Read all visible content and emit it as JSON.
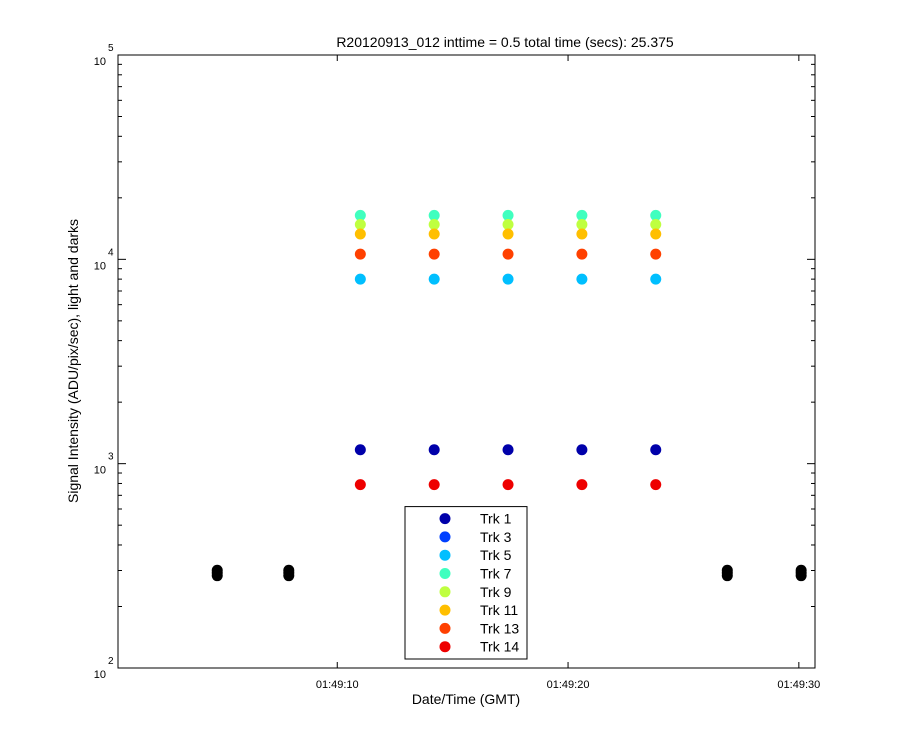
{
  "chart_data": {
    "type": "scatter",
    "title": "R20120913_012 inttime = 0.5 total time (secs): 25.375",
    "xlabel": "Date/Time (GMT)",
    "ylabel": "Signal Intensity (ADU/pix/sec), light and darks",
    "log_y": true,
    "legend_position": "bottom-center",
    "xlim": [
      "01:49:00.5",
      "01:49:30.7"
    ],
    "xticks": [
      "01:49:10",
      "01:49:20",
      "01:49:30"
    ],
    "ylim": [
      100,
      100000
    ],
    "yticks": [
      {
        "value": 100,
        "label": "10",
        "exponent": "2"
      },
      {
        "value": 1000,
        "label": "10",
        "exponent": "3"
      },
      {
        "value": 10000,
        "label": "10",
        "exponent": "4"
      },
      {
        "value": 100000,
        "label": "10",
        "exponent": "5"
      }
    ],
    "yminorticks": [
      200,
      300,
      400,
      500,
      600,
      700,
      800,
      900,
      2000,
      3000,
      4000,
      5000,
      6000,
      7000,
      8000,
      9000,
      20000,
      30000,
      40000,
      50000,
      60000,
      70000,
      80000,
      90000
    ],
    "x": [
      "01:49:11.0",
      "01:49:14.2",
      "01:49:17.4",
      "01:49:20.6",
      "01:49:23.8"
    ],
    "series": [
      {
        "name": "Trk 1",
        "color": "#0000aa",
        "values": [
          1170,
          1170,
          1170,
          1170,
          1170
        ]
      },
      {
        "name": "Trk 3",
        "color": "#0040ff",
        "values": [
          null,
          null,
          null,
          null,
          null
        ]
      },
      {
        "name": "Trk 5",
        "color": "#00bfff",
        "values": [
          8000,
          8000,
          8000,
          8000,
          8000
        ]
      },
      {
        "name": "Trk 7",
        "color": "#40ffbf",
        "values": [
          16400,
          16400,
          16400,
          16400,
          16400
        ]
      },
      {
        "name": "Trk 9",
        "color": "#bfff40",
        "values": [
          14800,
          14800,
          14800,
          14800,
          14800
        ]
      },
      {
        "name": "Trk 11",
        "color": "#ffbf00",
        "values": [
          13300,
          13300,
          13300,
          13300,
          13300
        ]
      },
      {
        "name": "Trk 13",
        "color": "#ff4000",
        "values": [
          10600,
          10600,
          10600,
          10600,
          10600
        ]
      },
      {
        "name": "Trk 14",
        "color": "#ee0000",
        "values": [
          790,
          790,
          790,
          790,
          790
        ]
      },
      {
        "color": "#000000",
        "x": [
          "01:49:04.8",
          "01:49:04.8",
          "01:49:04.8",
          "01:49:07.9",
          "01:49:07.9",
          "01:49:07.9",
          "01:49:26.9",
          "01:49:26.9",
          "01:49:26.9",
          "01:49:30.1",
          "01:49:30.1",
          "01:49:30.1"
        ],
        "values": [
          283,
          292,
          301,
          283,
          292,
          301,
          283,
          292,
          301,
          283,
          292,
          301
        ]
      }
    ]
  }
}
